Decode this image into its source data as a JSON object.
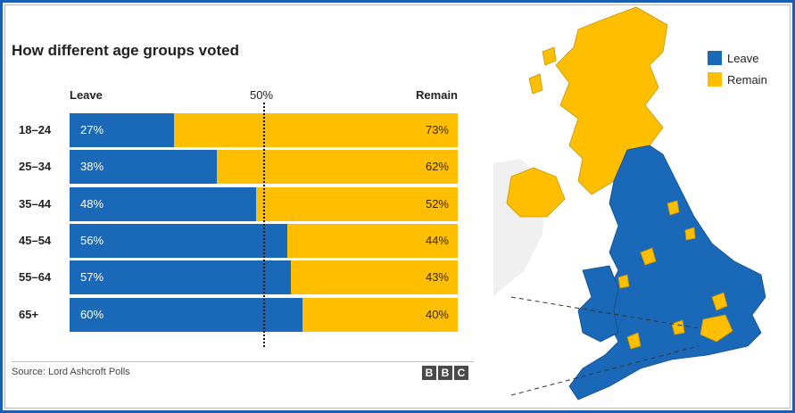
{
  "chart_data": {
    "type": "bar",
    "stacked": true,
    "orientation": "horizontal",
    "title": "How different age groups voted",
    "categories": [
      "18–24",
      "25–34",
      "35–44",
      "45–54",
      "55–64",
      "65+"
    ],
    "series": [
      {
        "name": "Leave",
        "values": [
          27,
          38,
          48,
          56,
          57,
          60
        ],
        "labels": [
          "27%",
          "38%",
          "48%",
          "56%",
          "57%",
          "60%"
        ],
        "color": "#1a69b9"
      },
      {
        "name": "Remain",
        "values": [
          73,
          62,
          52,
          44,
          43,
          40
        ],
        "labels": [
          "73%",
          "62%",
          "52%",
          "44%",
          "43%",
          "40%"
        ],
        "color": "#ffbf00"
      }
    ],
    "reference_line": {
      "value": 50,
      "label": "50%"
    },
    "xlim": [
      0,
      100
    ],
    "source": "Source: Lord Ashcroft Polls"
  },
  "branding": {
    "logo_letters": [
      "B",
      "B",
      "C"
    ]
  },
  "map": {
    "legend": [
      {
        "label": "Leave",
        "color": "#1a69b9"
      },
      {
        "label": "Remain",
        "color": "#ffbf00"
      }
    ]
  }
}
